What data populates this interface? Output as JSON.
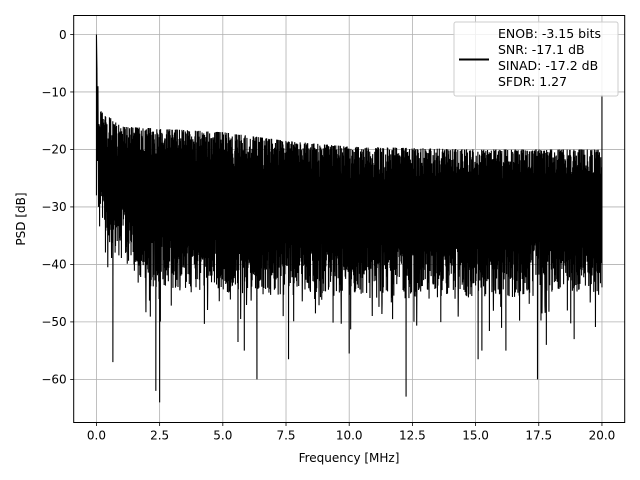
{
  "chart_data": {
    "type": "line",
    "title": "",
    "xlabel": "Frequency [MHz]",
    "ylabel": "PSD [dB]",
    "xlim": [
      -0.9,
      20.9
    ],
    "ylim": [
      -67.5,
      3.3
    ],
    "x_ticks": [
      0.0,
      2.5,
      5.0,
      7.5,
      10.0,
      12.5,
      15.0,
      17.5,
      20.0
    ],
    "x_tick_labels": [
      "0.0",
      "2.5",
      "5.0",
      "7.5",
      "10.0",
      "12.5",
      "15.0",
      "17.5",
      "20.0"
    ],
    "y_ticks": [
      0,
      -10,
      -20,
      -30,
      -40,
      -50,
      -60
    ],
    "y_tick_labels": [
      "0",
      "−10",
      "−20",
      "−30",
      "−40",
      "−50",
      "−60"
    ],
    "grid": true,
    "legend_position": "top-right",
    "series": [
      {
        "name_lines": [
          "ENOB: -3.15 bits",
          "SNR: -17.1 dB",
          "SINAD: -17.2 dB",
          "SFDR: 1.27"
        ],
        "color": "#000000",
        "x_range": [
          0.0,
          20.0
        ],
        "peak": {
          "x": 0.0,
          "y": 0.0
        },
        "end_spike": {
          "x": 20.0,
          "y": -10.5
        },
        "envelope_top": [
          [
            0.1,
            -13
          ],
          [
            1,
            -16
          ],
          [
            3,
            -16.5
          ],
          [
            5,
            -17
          ],
          [
            7.5,
            -18.5
          ],
          [
            10,
            -19.5
          ],
          [
            15,
            -20
          ],
          [
            20,
            -20
          ]
        ],
        "envelope_bottom": [
          [
            0.1,
            -35
          ],
          [
            2,
            -44
          ],
          [
            5,
            -45
          ],
          [
            10,
            -46
          ],
          [
            15,
            -46
          ],
          [
            20,
            -45
          ]
        ],
        "notches": [
          {
            "x": 0.65,
            "y": -57
          },
          {
            "x": 2.35,
            "y": -62
          },
          {
            "x": 2.5,
            "y": -64
          },
          {
            "x": 5.6,
            "y": -53.5
          },
          {
            "x": 5.85,
            "y": -55
          },
          {
            "x": 6.35,
            "y": -60
          },
          {
            "x": 7.6,
            "y": -56.5
          },
          {
            "x": 10.0,
            "y": -55.5
          },
          {
            "x": 12.25,
            "y": -63
          },
          {
            "x": 15.1,
            "y": -56.5
          },
          {
            "x": 15.25,
            "y": -55
          },
          {
            "x": 16.2,
            "y": -55
          },
          {
            "x": 17.45,
            "y": -60
          },
          {
            "x": 17.8,
            "y": -54
          },
          {
            "x": 18.9,
            "y": -53
          }
        ]
      }
    ]
  }
}
